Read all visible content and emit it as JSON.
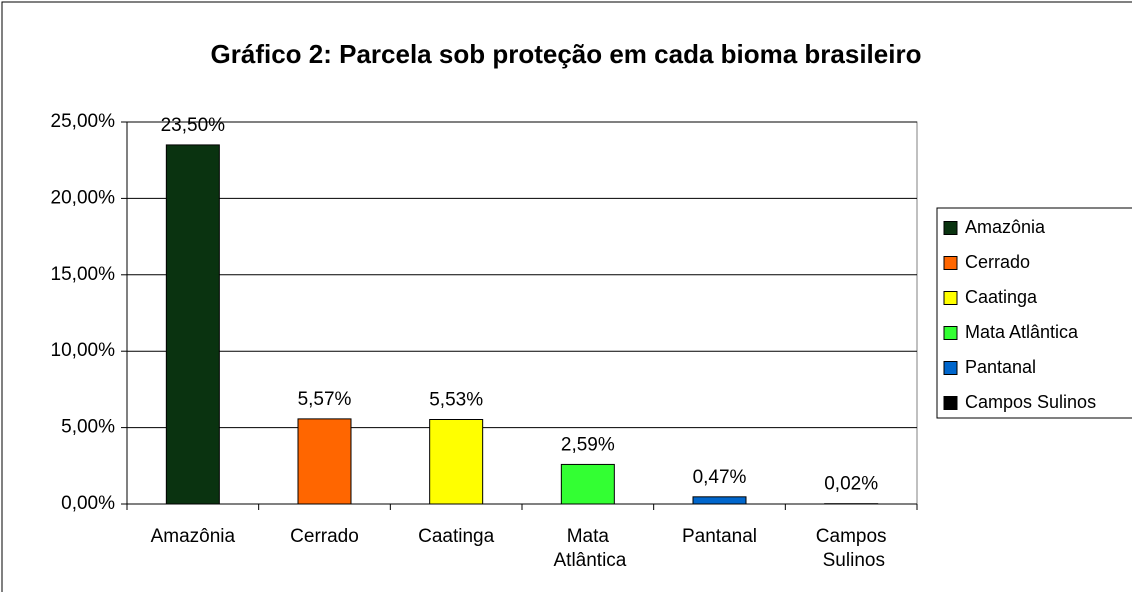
{
  "chart_data": {
    "type": "bar",
    "title": "Gráfico 2: Parcela sob proteção em cada bioma brasileiro",
    "categories": [
      "Amazônia",
      "Cerrado",
      "Caatinga",
      "Mata Atlântica",
      "Pantanal",
      "Campos Sulinos"
    ],
    "values": [
      23.5,
      5.57,
      5.53,
      2.59,
      0.47,
      0.02
    ],
    "value_labels": [
      "23,50%",
      "5,57%",
      "5,53%",
      "2,59%",
      "0,47%",
      "0,02%"
    ],
    "colors": [
      "#0a3310",
      "#ff6600",
      "#ffff00",
      "#33ff33",
      "#0066cc",
      "#000000"
    ],
    "ylim": [
      0,
      25
    ],
    "yticks": [
      {
        "value": 0,
        "label": "0,00%"
      },
      {
        "value": 5,
        "label": "5,00%"
      },
      {
        "value": 10,
        "label": "10,00%"
      },
      {
        "value": 15,
        "label": "15,00%"
      },
      {
        "value": 20,
        "label": "20,00%"
      },
      {
        "value": 25,
        "label": "25,00%"
      }
    ],
    "grid": true,
    "legend": "right"
  }
}
